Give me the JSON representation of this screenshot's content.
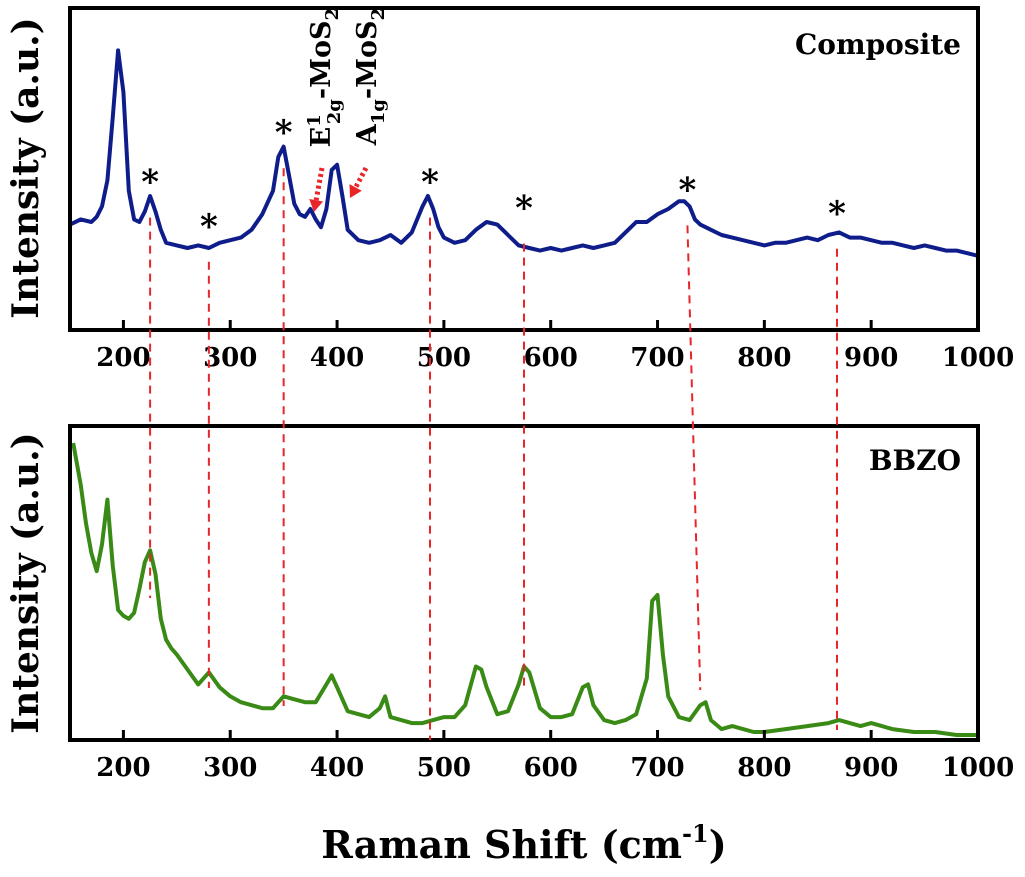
{
  "chart_data": [
    {
      "type": "line",
      "panel_label": "Composite",
      "ylabel": "Intensity (a.u.)",
      "xlim": [
        150,
        1000
      ],
      "xticks": [
        "200",
        "300",
        "400",
        "500",
        "600",
        "700",
        "800",
        "900",
        "1000"
      ],
      "ylim": [
        0,
        1
      ],
      "series": [
        {
          "color": "#0f1d8a",
          "x": [
            150,
            160,
            170,
            175,
            180,
            185,
            190,
            195,
            200,
            205,
            210,
            215,
            220,
            225,
            230,
            235,
            240,
            250,
            260,
            270,
            280,
            290,
            300,
            310,
            320,
            330,
            340,
            345,
            350,
            355,
            360,
            365,
            370,
            375,
            380,
            385,
            390,
            395,
            400,
            405,
            410,
            420,
            430,
            440,
            450,
            460,
            470,
            480,
            485,
            490,
            495,
            500,
            510,
            520,
            530,
            540,
            550,
            560,
            570,
            580,
            590,
            600,
            610,
            620,
            630,
            640,
            650,
            660,
            670,
            680,
            690,
            700,
            710,
            720,
            725,
            730,
            735,
            740,
            750,
            760,
            770,
            780,
            790,
            800,
            810,
            820,
            830,
            840,
            850,
            860,
            870,
            880,
            890,
            900,
            910,
            920,
            930,
            940,
            950,
            960,
            970,
            980,
            990,
            1000
          ],
          "values": [
            0.29,
            0.31,
            0.3,
            0.32,
            0.36,
            0.46,
            0.7,
            0.96,
            0.8,
            0.42,
            0.31,
            0.3,
            0.34,
            0.4,
            0.34,
            0.27,
            0.22,
            0.21,
            0.2,
            0.21,
            0.2,
            0.22,
            0.23,
            0.24,
            0.27,
            0.33,
            0.42,
            0.55,
            0.59,
            0.48,
            0.37,
            0.33,
            0.32,
            0.35,
            0.31,
            0.28,
            0.35,
            0.5,
            0.52,
            0.4,
            0.27,
            0.23,
            0.22,
            0.23,
            0.25,
            0.22,
            0.26,
            0.36,
            0.4,
            0.35,
            0.28,
            0.24,
            0.22,
            0.23,
            0.27,
            0.3,
            0.29,
            0.25,
            0.21,
            0.2,
            0.19,
            0.2,
            0.19,
            0.2,
            0.21,
            0.2,
            0.21,
            0.22,
            0.26,
            0.3,
            0.3,
            0.33,
            0.35,
            0.38,
            0.38,
            0.36,
            0.31,
            0.29,
            0.27,
            0.25,
            0.24,
            0.23,
            0.22,
            0.21,
            0.22,
            0.22,
            0.23,
            0.24,
            0.23,
            0.25,
            0.26,
            0.24,
            0.24,
            0.23,
            0.22,
            0.22,
            0.21,
            0.2,
            0.21,
            0.2,
            0.19,
            0.19,
            0.18,
            0.17
          ]
        }
      ],
      "peak_markers": [
        {
          "label": "*",
          "x": 225,
          "y": 0.44
        },
        {
          "label": "*",
          "x": 280,
          "y": 0.27
        },
        {
          "label": "*",
          "x": 350,
          "y": 0.63
        },
        {
          "label": "*",
          "x": 487,
          "y": 0.44
        },
        {
          "label": "*",
          "x": 575,
          "y": 0.34
        },
        {
          "label": "*",
          "x": 728,
          "y": 0.41
        },
        {
          "label": "*",
          "x": 868,
          "y": 0.32
        }
      ],
      "annotations": [
        {
          "main": "E",
          "sup": "1",
          "sub": "2g",
          "rest": "-MoS",
          "sub2": "2",
          "x": 378
        },
        {
          "main": "A",
          "sub": "1g",
          "rest": "-MoS",
          "sub2": "2",
          "x": 410
        }
      ]
    },
    {
      "type": "line",
      "panel_label": "BBZO",
      "ylabel": "Intensity (a.u.)",
      "xlabel": {
        "main": "Raman Shift (cm",
        "sup": "-1",
        "tail": ")"
      },
      "xlim": [
        150,
        1000
      ],
      "xticks": [
        "200",
        "300",
        "400",
        "500",
        "600",
        "700",
        "800",
        "900",
        "1000"
      ],
      "ylim": [
        0,
        1
      ],
      "series": [
        {
          "color": "#3a8a16",
          "x": [
            153,
            160,
            165,
            170,
            175,
            180,
            185,
            190,
            195,
            200,
            205,
            210,
            215,
            220,
            225,
            230,
            235,
            240,
            245,
            250,
            260,
            270,
            280,
            290,
            300,
            310,
            320,
            330,
            340,
            350,
            360,
            370,
            380,
            390,
            395,
            400,
            410,
            420,
            430,
            440,
            445,
            450,
            460,
            470,
            480,
            490,
            500,
            510,
            520,
            530,
            535,
            540,
            550,
            560,
            570,
            575,
            580,
            590,
            600,
            610,
            620,
            630,
            635,
            640,
            650,
            660,
            670,
            680,
            690,
            695,
            700,
            705,
            710,
            720,
            730,
            740,
            745,
            750,
            760,
            770,
            780,
            790,
            800,
            820,
            840,
            860,
            870,
            880,
            890,
            900,
            910,
            920,
            940,
            960,
            980,
            1000
          ],
          "values": [
            0.99,
            0.85,
            0.72,
            0.62,
            0.56,
            0.65,
            0.8,
            0.58,
            0.43,
            0.41,
            0.4,
            0.42,
            0.5,
            0.59,
            0.63,
            0.55,
            0.4,
            0.33,
            0.3,
            0.28,
            0.23,
            0.18,
            0.22,
            0.17,
            0.14,
            0.12,
            0.11,
            0.1,
            0.1,
            0.14,
            0.13,
            0.12,
            0.12,
            0.18,
            0.21,
            0.17,
            0.09,
            0.08,
            0.07,
            0.1,
            0.14,
            0.07,
            0.06,
            0.05,
            0.05,
            0.06,
            0.07,
            0.07,
            0.11,
            0.24,
            0.23,
            0.17,
            0.08,
            0.09,
            0.18,
            0.24,
            0.22,
            0.1,
            0.07,
            0.07,
            0.08,
            0.17,
            0.18,
            0.11,
            0.06,
            0.05,
            0.06,
            0.08,
            0.2,
            0.46,
            0.48,
            0.28,
            0.14,
            0.07,
            0.06,
            0.11,
            0.12,
            0.06,
            0.03,
            0.04,
            0.03,
            0.02,
            0.02,
            0.03,
            0.04,
            0.05,
            0.06,
            0.05,
            0.04,
            0.05,
            0.04,
            0.03,
            0.02,
            0.02,
            0.01,
            0.01
          ]
        }
      ]
    }
  ],
  "guide_lines": [
    {
      "top_x": 225,
      "bottom_x": 225
    },
    {
      "top_x": 280,
      "bottom_x": 280
    },
    {
      "top_x": 350,
      "bottom_x": 350
    },
    {
      "top_x": 487,
      "bottom_x": 487
    },
    {
      "top_x": 575,
      "bottom_x": 575
    },
    {
      "top_x": 728,
      "bottom_x": 740
    },
    {
      "top_x": 868,
      "bottom_x": 868
    }
  ],
  "colors": {
    "axis": "#000000",
    "guides": "#e8262a",
    "arrows": "#e8262a"
  }
}
